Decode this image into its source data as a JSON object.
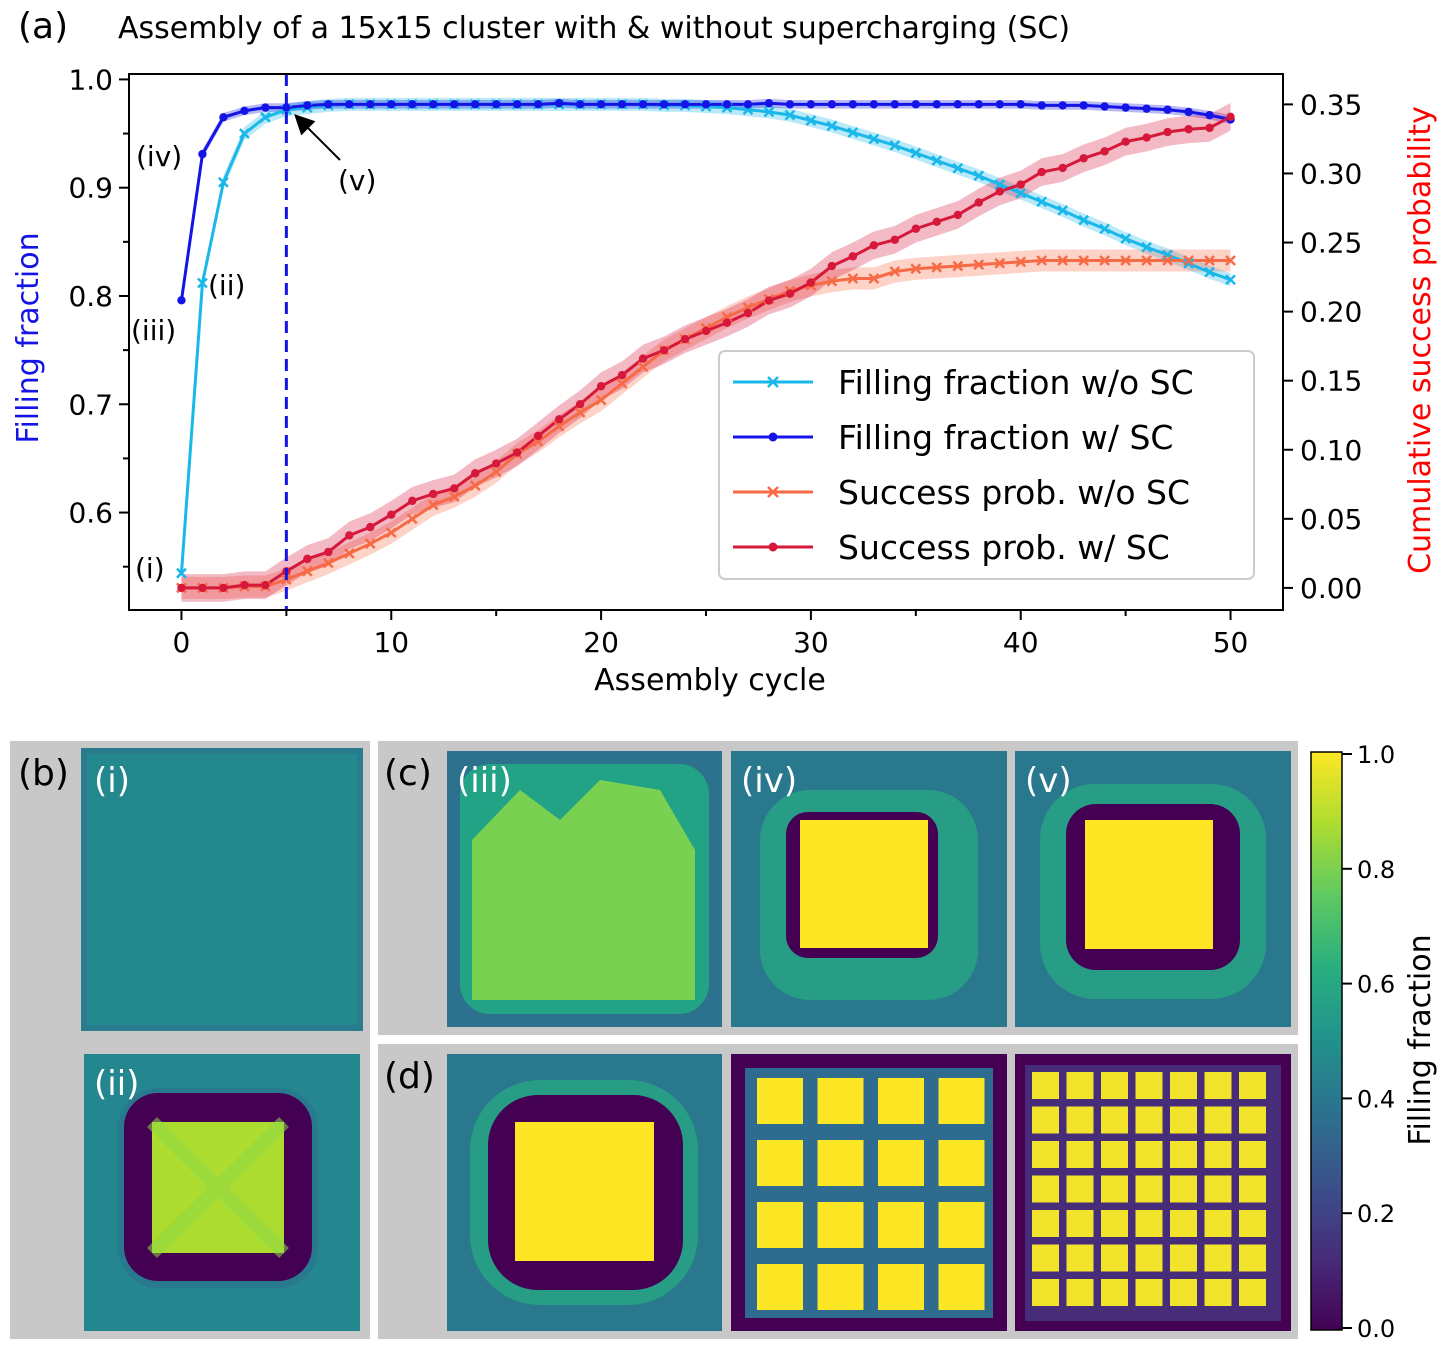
{
  "panel_a": {
    "label": "(a)",
    "title": "Assembly of a 15x15 cluster with & without supercharging (SC)",
    "xlabel": "Assembly cycle",
    "ylabel_left": "Filling fraction",
    "ylabel_right": "Cumulative success probability",
    "annotations": [
      "(i)",
      "(ii)",
      "(iii)",
      "(iv)",
      "(v)"
    ],
    "colors": {
      "ff_wo": "#1ab7ea",
      "ff_w": "#1414e6",
      "sp_wo": "#f76a46",
      "sp_w": "#d6183b",
      "vline": "#1414e6"
    }
  },
  "panel_b": {
    "label": "(b)",
    "tiles": [
      "(i)",
      "(ii)"
    ]
  },
  "panel_c": {
    "label": "(c)",
    "tiles": [
      "(iii)",
      "(iv)",
      "(v)"
    ]
  },
  "panel_d": {
    "label": "(d)"
  },
  "colorbar": {
    "label": "Filling fraction",
    "ticks": [
      "1.0",
      "0.8",
      "0.6",
      "0.4",
      "0.2",
      "0.0"
    ]
  },
  "chart_data": {
    "type": "line",
    "title": "Assembly of a 15x15 cluster with & without supercharging (SC)",
    "xlabel": "Assembly cycle",
    "ylabel": "Filling fraction",
    "y2label": "Cumulative success probability",
    "xlim": [
      -2.5,
      52.5
    ],
    "ylim": [
      0.51,
      1.005
    ],
    "y2lim": [
      -0.016,
      0.372
    ],
    "xticks": [
      0,
      10,
      20,
      30,
      40,
      50
    ],
    "yticks": [
      0.6,
      0.7,
      0.8,
      0.9,
      1.0
    ],
    "y2ticks": [
      0.0,
      0.05,
      0.1,
      0.15,
      0.2,
      0.25,
      0.3,
      0.35
    ],
    "vline_x": 5,
    "legend_position": "lower-right",
    "x": [
      0,
      1,
      2,
      3,
      4,
      5,
      6,
      7,
      8,
      9,
      10,
      11,
      12,
      13,
      14,
      15,
      16,
      17,
      18,
      19,
      20,
      21,
      22,
      23,
      24,
      25,
      26,
      27,
      28,
      29,
      30,
      31,
      32,
      33,
      34,
      35,
      36,
      37,
      38,
      39,
      40,
      41,
      42,
      43,
      44,
      45,
      46,
      47,
      48,
      49,
      50
    ],
    "series": [
      {
        "name": "Filling fraction w/o SC",
        "axis": "left",
        "marker": "x",
        "values": [
          0.544,
          0.812,
          0.905,
          0.95,
          0.965,
          0.972,
          0.974,
          0.976,
          0.977,
          0.977,
          0.977,
          0.977,
          0.977,
          0.977,
          0.977,
          0.977,
          0.977,
          0.977,
          0.977,
          0.977,
          0.977,
          0.977,
          0.977,
          0.976,
          0.976,
          0.975,
          0.974,
          0.972,
          0.97,
          0.967,
          0.962,
          0.957,
          0.951,
          0.945,
          0.939,
          0.932,
          0.925,
          0.918,
          0.911,
          0.903,
          0.895,
          0.887,
          0.879,
          0.87,
          0.862,
          0.853,
          0.845,
          0.838,
          0.83,
          0.822,
          0.815
        ]
      },
      {
        "name": "Filling fraction w/ SC",
        "axis": "left",
        "marker": "o",
        "values": [
          0.796,
          0.931,
          0.965,
          0.971,
          0.974,
          0.974,
          0.976,
          0.977,
          0.977,
          0.977,
          0.977,
          0.977,
          0.977,
          0.977,
          0.977,
          0.977,
          0.977,
          0.977,
          0.978,
          0.977,
          0.977,
          0.977,
          0.977,
          0.977,
          0.977,
          0.977,
          0.977,
          0.977,
          0.978,
          0.977,
          0.977,
          0.977,
          0.977,
          0.977,
          0.977,
          0.977,
          0.977,
          0.977,
          0.977,
          0.977,
          0.977,
          0.976,
          0.976,
          0.976,
          0.975,
          0.974,
          0.973,
          0.972,
          0.97,
          0.967,
          0.963
        ]
      },
      {
        "name": "Success prob. w/o SC",
        "axis": "right",
        "marker": "x",
        "values": [
          0.0,
          0.0,
          0.0,
          0.001,
          0.001,
          0.006,
          0.012,
          0.018,
          0.025,
          0.032,
          0.04,
          0.05,
          0.06,
          0.066,
          0.074,
          0.084,
          0.097,
          0.106,
          0.117,
          0.127,
          0.136,
          0.148,
          0.16,
          0.172,
          0.18,
          0.188,
          0.196,
          0.203,
          0.209,
          0.215,
          0.219,
          0.222,
          0.224,
          0.224,
          0.229,
          0.231,
          0.232,
          0.233,
          0.234,
          0.235,
          0.236,
          0.237,
          0.237,
          0.237,
          0.237,
          0.237,
          0.237,
          0.237,
          0.237,
          0.237,
          0.237
        ]
      },
      {
        "name": "Success prob. w/ SC",
        "axis": "right",
        "marker": "o",
        "values": [
          0.0,
          0.0,
          0.0,
          0.002,
          0.002,
          0.012,
          0.021,
          0.026,
          0.038,
          0.044,
          0.053,
          0.063,
          0.068,
          0.072,
          0.083,
          0.09,
          0.098,
          0.11,
          0.122,
          0.133,
          0.146,
          0.154,
          0.166,
          0.172,
          0.18,
          0.186,
          0.192,
          0.199,
          0.208,
          0.213,
          0.221,
          0.233,
          0.24,
          0.248,
          0.252,
          0.26,
          0.265,
          0.27,
          0.279,
          0.287,
          0.292,
          0.301,
          0.304,
          0.311,
          0.316,
          0.323,
          0.326,
          0.33,
          0.332,
          0.333,
          0.341
        ]
      }
    ]
  }
}
